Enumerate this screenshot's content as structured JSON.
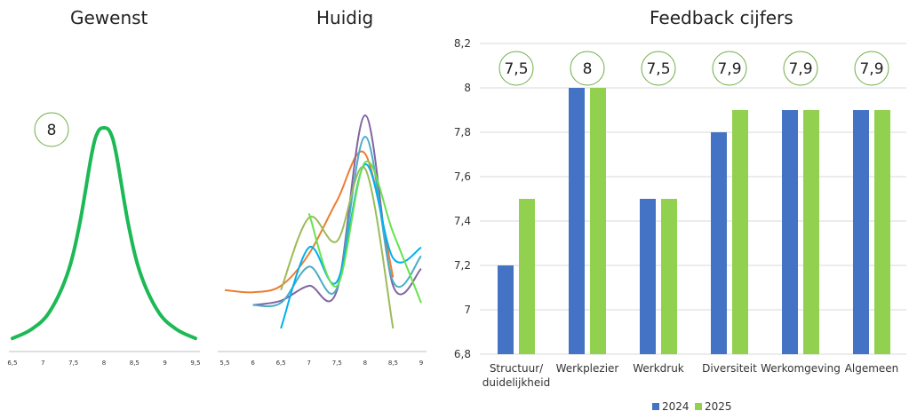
{
  "colors": {
    "series_2024": "#4472C4",
    "series_2025": "#92D050",
    "bubble_border": "#70AD47",
    "desired_curve": "#1DB954",
    "gridline": "#D9D9D9",
    "axis": "#BFBFBF"
  },
  "chart_data": [
    {
      "type": "line",
      "title": "Gewenst",
      "x_ticks": [
        "6,5",
        "7",
        "7,5",
        "8",
        "8,5",
        "9",
        "9,5"
      ],
      "xlim": [
        6.5,
        9.5
      ],
      "series": [
        {
          "x": [
            6.5,
            6.8,
            7.1,
            7.4,
            7.6,
            7.8,
            7.9,
            8.0,
            8.1,
            8.2,
            8.4,
            8.6,
            8.9,
            9.2,
            9.5
          ],
          "y": [
            0.02,
            0.06,
            0.14,
            0.32,
            0.55,
            0.88,
            0.98,
            1.0,
            0.98,
            0.88,
            0.55,
            0.32,
            0.14,
            0.06,
            0.02
          ]
        }
      ],
      "annotation": "8",
      "grid": false
    },
    {
      "type": "line",
      "title": "Huidig",
      "x_ticks": [
        "5,5",
        "6",
        "6,5",
        "7",
        "7,5",
        "8",
        "8,5",
        "9"
      ],
      "xlim": [
        5.5,
        9
      ],
      "series": [
        {
          "color": "#ED7D31",
          "x": [
            5.5,
            6.0,
            6.5,
            7.0,
            7.5,
            8.0,
            8.5
          ],
          "y": [
            0.18,
            0.17,
            0.2,
            0.35,
            0.6,
            0.82,
            0.24
          ]
        },
        {
          "color": "#8064A2",
          "x": [
            6.0,
            6.5,
            7.0,
            7.5,
            8.0,
            8.5,
            9.0
          ],
          "y": [
            0.11,
            0.13,
            0.2,
            0.18,
            1.0,
            0.2,
            0.28
          ]
        },
        {
          "color": "#4BACC6",
          "x": [
            6.0,
            6.5,
            7.0,
            7.5,
            8.0,
            8.5,
            9.0
          ],
          "y": [
            0.11,
            0.12,
            0.29,
            0.19,
            0.9,
            0.22,
            0.34
          ]
        },
        {
          "color": "#9BBB59",
          "x": [
            6.5,
            7.0,
            7.5,
            8.0,
            8.5
          ],
          "y": [
            0.18,
            0.52,
            0.41,
            0.75,
            0.0
          ]
        },
        {
          "color": "#00B0F0",
          "x": [
            6.5,
            7.0,
            7.5,
            8.0,
            8.5,
            9.0
          ],
          "y": [
            0.0,
            0.38,
            0.22,
            0.77,
            0.33,
            0.38
          ]
        },
        {
          "color": "#66E34D",
          "x": [
            7.0,
            7.5,
            8.0,
            8.5,
            9.0
          ],
          "y": [
            0.54,
            0.2,
            0.78,
            0.45,
            0.12
          ]
        }
      ],
      "grid": false
    },
    {
      "type": "bar",
      "title": "Feedback cijfers",
      "categories": [
        [
          "Structuur/",
          "duidelijkheid"
        ],
        [
          "Werkplezier"
        ],
        [
          "Werkdruk"
        ],
        [
          "Diversiteit"
        ],
        [
          "Werkomgeving"
        ],
        [
          "Algemeen"
        ]
      ],
      "series": [
        {
          "name": "2024",
          "values": [
            7.2,
            8.0,
            7.5,
            7.8,
            7.9,
            7.9
          ]
        },
        {
          "name": "2025",
          "values": [
            7.5,
            8.0,
            7.5,
            7.9,
            7.9,
            7.9
          ]
        }
      ],
      "bubble_labels": [
        "7,5",
        "8",
        "7,5",
        "7,9",
        "7,9",
        "7,9"
      ],
      "ylim": [
        6.8,
        8.2
      ],
      "y_ticks": [
        "6,8",
        "7",
        "7,2",
        "7,4",
        "7,6",
        "7,8",
        "8",
        "8,2"
      ],
      "grid": true,
      "legend_position": "bottom"
    }
  ]
}
